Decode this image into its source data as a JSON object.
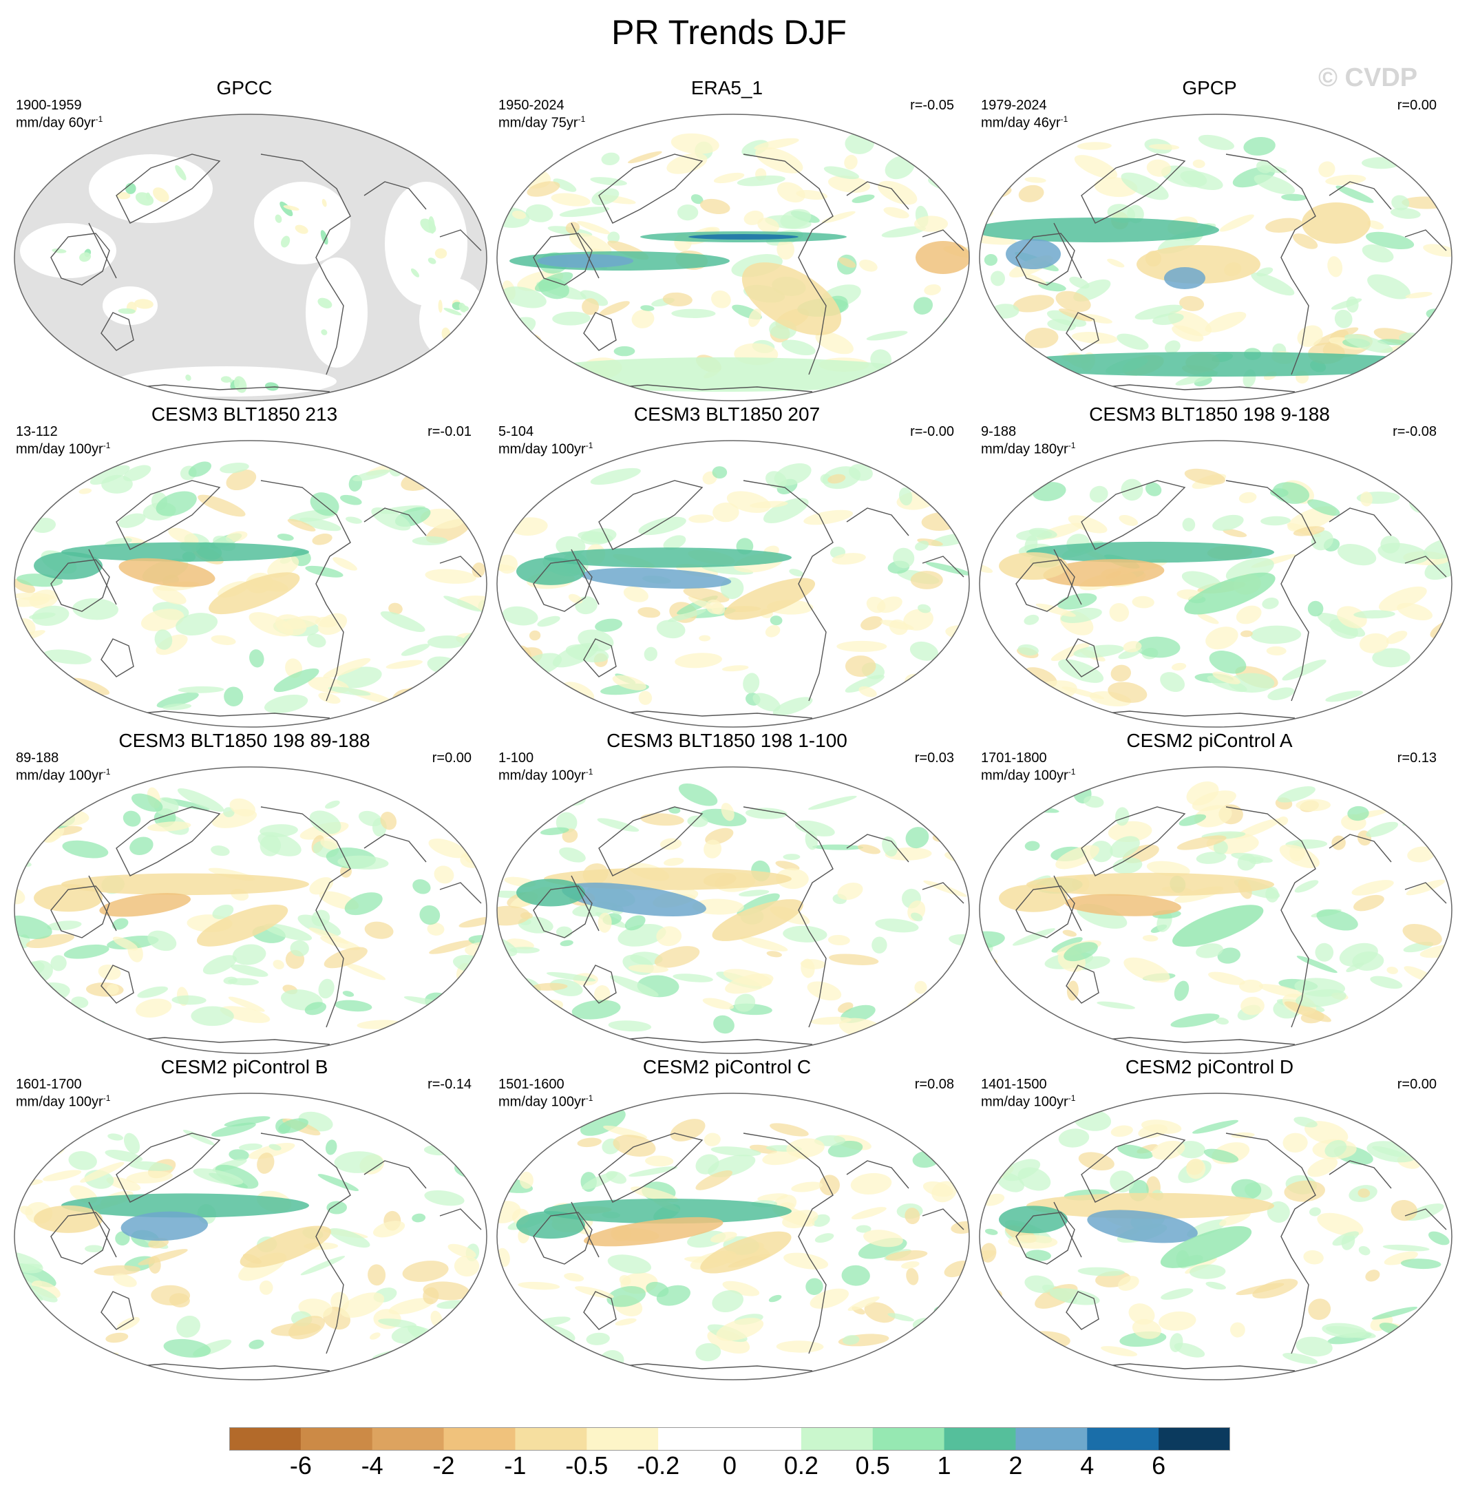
{
  "title": "PR Trends DJF",
  "watermark": "© CVDP",
  "panels": [
    {
      "title": "GPCC",
      "years": "1900-1959",
      "units": "mm/day 60yr",
      "units_exp": "-1",
      "r": "",
      "pattern": "gpcc"
    },
    {
      "title": "ERA5_1",
      "years": "1950-2024",
      "units": "mm/day 75yr",
      "units_exp": "-1",
      "r": "r=-0.05",
      "pattern": "era5"
    },
    {
      "title": "GPCP",
      "years": "1979-2024",
      "units": "mm/day 46yr",
      "units_exp": "-1",
      "r": "r=0.00",
      "pattern": "gpcp"
    },
    {
      "title": "CESM3 BLT1850 213",
      "years": "13-112",
      "units": "mm/day 100yr",
      "units_exp": "-1",
      "r": "r=-0.01",
      "pattern": "model"
    },
    {
      "title": "CESM3 BLT1850 207",
      "years": "5-104",
      "units": "mm/day 100yr",
      "units_exp": "-1",
      "r": "r=-0.00",
      "pattern": "model"
    },
    {
      "title": "CESM3 BLT1850 198 9-188",
      "years": "9-188",
      "units": "mm/day 180yr",
      "units_exp": "-1",
      "r": "r=-0.08",
      "pattern": "model"
    },
    {
      "title": "CESM3 BLT1850 198 89-188",
      "years": "89-188",
      "units": "mm/day 100yr",
      "units_exp": "-1",
      "r": "r=0.00",
      "pattern": "model"
    },
    {
      "title": "CESM3 BLT1850 198 1-100",
      "years": "1-100",
      "units": "mm/day 100yr",
      "units_exp": "-1",
      "r": "r=0.03",
      "pattern": "model"
    },
    {
      "title": "CESM2 piControl A",
      "years": "1701-1800",
      "units": "mm/day 100yr",
      "units_exp": "-1",
      "r": "r=0.13",
      "pattern": "model"
    },
    {
      "title": "CESM2 piControl B",
      "years": "1601-1700",
      "units": "mm/day 100yr",
      "units_exp": "-1",
      "r": "r=-0.14",
      "pattern": "model"
    },
    {
      "title": "CESM2 piControl C",
      "years": "1501-1600",
      "units": "mm/day 100yr",
      "units_exp": "-1",
      "r": "r=0.08",
      "pattern": "model"
    },
    {
      "title": "CESM2 piControl D",
      "years": "1401-1500",
      "units": "mm/day 100yr",
      "units_exp": "-1",
      "r": "r=0.00",
      "pattern": "model"
    }
  ],
  "colorbar": {
    "labels": [
      "-6",
      "-4",
      "-2",
      "-1",
      "-0.5",
      "-0.2",
      "0",
      "0.2",
      "0.5",
      "1",
      "2",
      "4",
      "6"
    ],
    "colors": [
      "#b36a2a",
      "#cc8a46",
      "#dda35f",
      "#f0c27c",
      "#f6dfa0",
      "#fdf5c8",
      "#ffffff",
      "#ffffff",
      "#caf7cd",
      "#96e8b2",
      "#55bf9b",
      "#6ea8cc",
      "#1a6ea9",
      "#0b3a5e"
    ]
  },
  "colors": {
    "land_missing": "#e1e1e1",
    "coast": "#555555",
    "outline": "#666666"
  }
}
